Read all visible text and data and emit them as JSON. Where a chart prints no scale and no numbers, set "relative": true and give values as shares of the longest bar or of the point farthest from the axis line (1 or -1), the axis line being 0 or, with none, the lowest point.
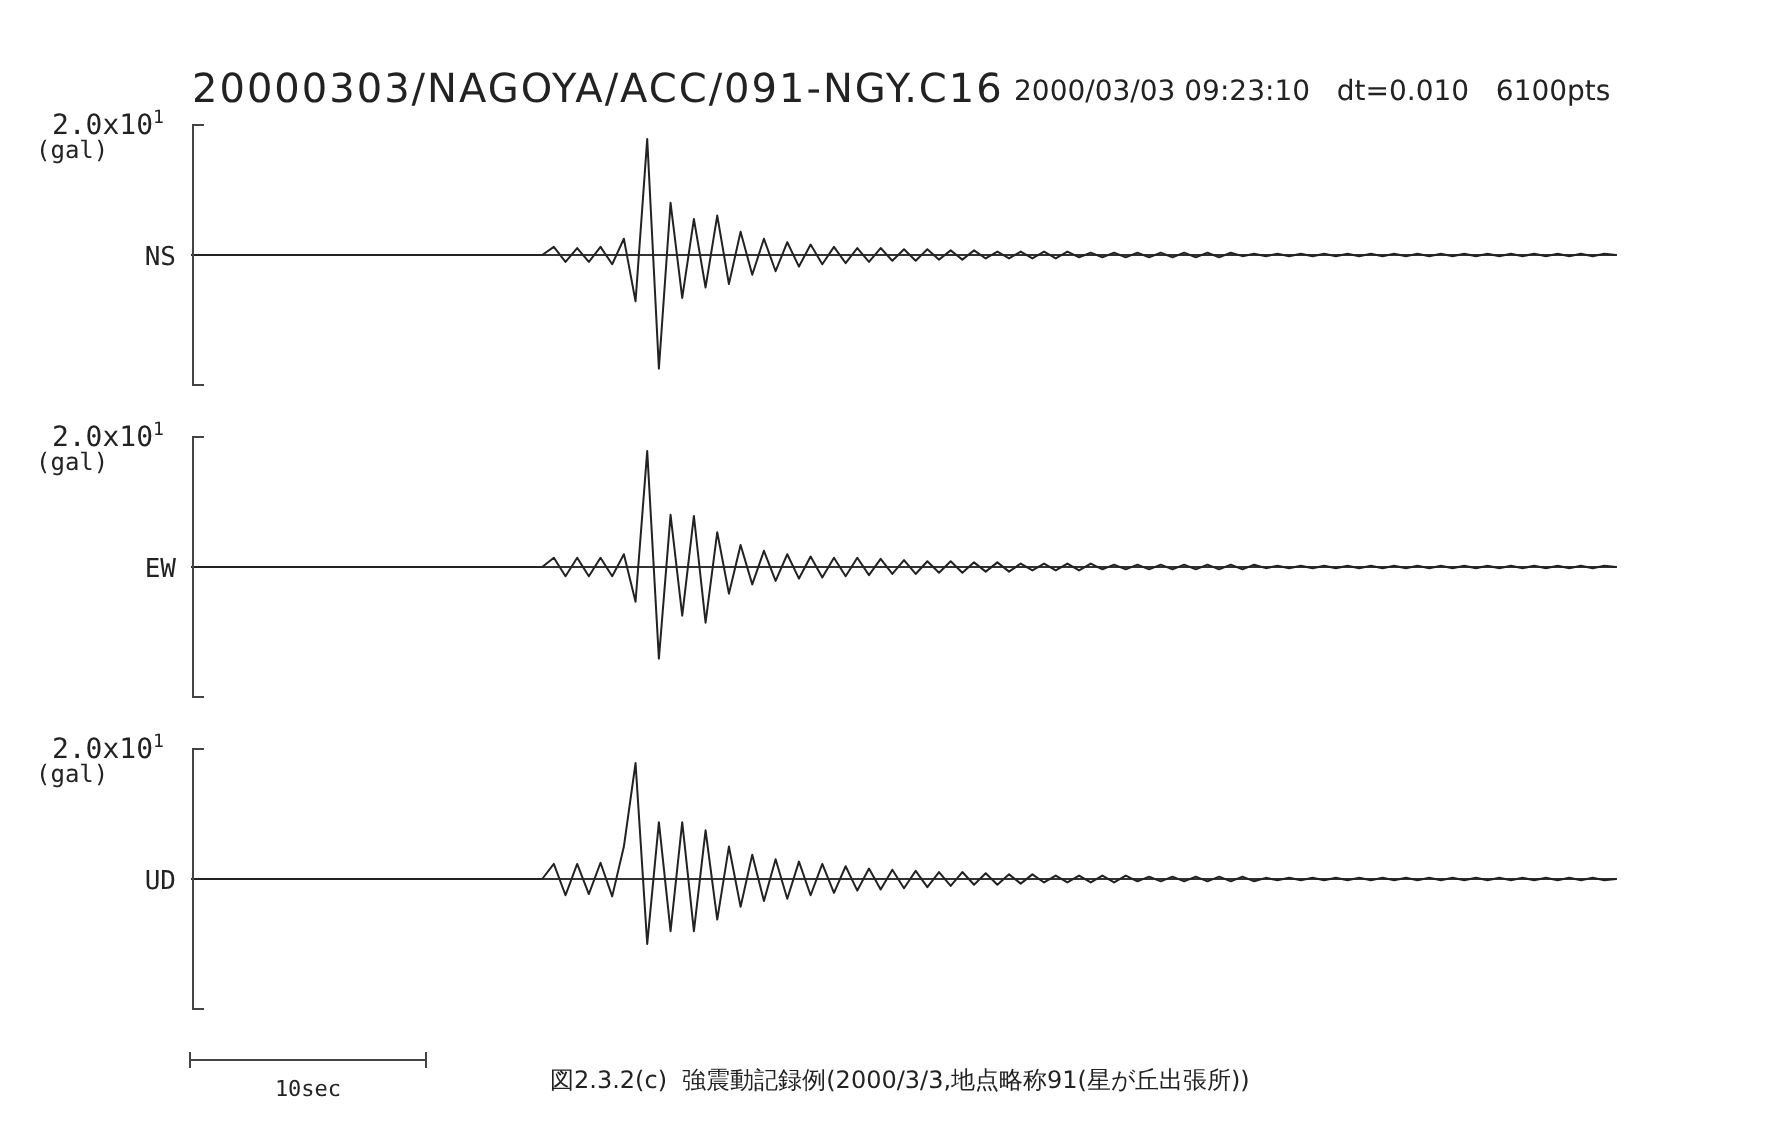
{
  "chart_data": [
    {
      "type": "line",
      "title": "20000303/NAGOYA/ACC/091-NGY.C16",
      "subtitle": "2000/03/03 09:23:10   dt=0.010   6100pts",
      "ylabel": "(gal)",
      "relative": true,
      "annotations": [
        "2.0x10$^{1}$"
      ],
      "categories": [
        null,
        null,
        null,
        null,
        null,
        null,
        null,
        null,
        null,
        null,
        null,
        null,
        null,
        null,
        null,
        null,
        null,
        null,
        null,
        null,
        null,
        null,
        null,
        null,
        null,
        null,
        null,
        null,
        null,
        null,
        null,
        null,
        null,
        null,
        null,
        null,
        null,
        null,
        null,
        null,
        null,
        null,
        null,
        null,
        null,
        null,
        null,
        null,
        null,
        null,
        null,
        null,
        null,
        null,
        null,
        null,
        null,
        null,
        null,
        null,
        null,
        null,
        null,
        null,
        null,
        null,
        null,
        null,
        null,
        null,
        null,
        null,
        null,
        null,
        null,
        null,
        null,
        null,
        null,
        null,
        null,
        null,
        null,
        null,
        null,
        null,
        null,
        null,
        null,
        null,
        null,
        null,
        null,
        null,
        null,
        null,
        null,
        null,
        null,
        null,
        null,
        null,
        null,
        null,
        null,
        null,
        null,
        null,
        null,
        null,
        null,
        null,
        null,
        null,
        null,
        null,
        null,
        null,
        null,
        null,
        null,
        null,
        null
      ],
      "series": [
        {
          "name": "NS",
          "color": "#222222",
          "values": [
            0,
            0,
            0,
            0,
            0,
            0,
            0,
            0,
            0,
            0,
            0,
            0,
            0,
            0,
            0,
            0,
            0,
            0,
            0,
            0,
            0,
            0,
            0,
            0,
            0,
            0,
            0,
            0,
            0,
            0,
            0,
            0.07,
            -0.06,
            0.06,
            -0.06,
            0.07,
            -0.08,
            0.14,
            -0.4,
            1,
            -0.98,
            0.45,
            -0.37,
            0.31,
            -0.28,
            0.34,
            -0.25,
            0.2,
            -0.17,
            0.14,
            -0.14,
            0.11,
            -0.1,
            0.09,
            -0.08,
            0.07,
            -0.07,
            0.06,
            -0.06,
            0.06,
            -0.05,
            0.05,
            -0.05,
            0.05,
            -0.04,
            0.04,
            -0.04,
            0.04,
            -0.03,
            0.03,
            -0.03,
            0.03,
            -0.03,
            0.03,
            -0.03,
            0.03,
            -0.02,
            0.02,
            -0.02,
            0.02,
            -0.02,
            0.02,
            -0.02,
            0.02,
            -0.02,
            0.02,
            -0.02,
            0.02,
            -0.02,
            0.02,
            -0.01,
            0.01,
            -0.01,
            0.01,
            -0.01,
            0.01,
            -0.01,
            0.01,
            -0.01,
            0.01,
            -0.01,
            0.01,
            -0.01,
            0.01,
            -0.01,
            0.01,
            -0.01,
            0.01,
            -0.01,
            0.01,
            -0.01,
            0.01,
            -0.01,
            0.01,
            -0.01,
            0.01,
            -0.01,
            0.01,
            -0.01,
            0.01,
            -0.01,
            0.01,
            0
          ]
        }
      ]
    },
    {
      "type": "line",
      "ylabel": "(gal)",
      "relative": true,
      "annotations": [
        "2.0x10$^{1}$"
      ],
      "categories": [
        null,
        null,
        null,
        null,
        null,
        null,
        null,
        null,
        null,
        null,
        null,
        null,
        null,
        null,
        null,
        null,
        null,
        null,
        null,
        null,
        null,
        null,
        null,
        null,
        null,
        null,
        null,
        null,
        null,
        null,
        null,
        null,
        null,
        null,
        null,
        null,
        null,
        null,
        null,
        null,
        null,
        null,
        null,
        null,
        null,
        null,
        null,
        null,
        null,
        null,
        null,
        null,
        null,
        null,
        null,
        null,
        null,
        null,
        null,
        null,
        null,
        null,
        null,
        null,
        null,
        null,
        null,
        null,
        null,
        null,
        null,
        null,
        null,
        null,
        null,
        null,
        null,
        null,
        null,
        null,
        null,
        null,
        null,
        null,
        null,
        null,
        null,
        null,
        null,
        null,
        null,
        null,
        null,
        null,
        null,
        null,
        null,
        null,
        null,
        null,
        null,
        null,
        null,
        null,
        null,
        null,
        null,
        null,
        null,
        null,
        null,
        null,
        null,
        null,
        null,
        null,
        null,
        null,
        null,
        null,
        null,
        null,
        null
      ],
      "series": [
        {
          "name": "EW",
          "color": "#222222",
          "values": [
            0,
            0,
            0,
            0,
            0,
            0,
            0,
            0,
            0,
            0,
            0,
            0,
            0,
            0,
            0,
            0,
            0,
            0,
            0,
            0,
            0,
            0,
            0,
            0,
            0,
            0,
            0,
            0,
            0,
            0,
            0,
            0.08,
            -0.08,
            0.08,
            -0.08,
            0.08,
            -0.08,
            0.11,
            -0.3,
            1,
            -0.79,
            0.45,
            -0.42,
            0.44,
            -0.48,
            0.3,
            -0.23,
            0.19,
            -0.15,
            0.14,
            -0.12,
            0.11,
            -0.1,
            0.09,
            -0.09,
            0.08,
            -0.08,
            0.08,
            -0.07,
            0.07,
            -0.06,
            0.06,
            -0.06,
            0.05,
            -0.05,
            0.05,
            -0.05,
            0.04,
            -0.04,
            0.04,
            -0.04,
            0.03,
            -0.03,
            0.03,
            -0.03,
            0.03,
            -0.03,
            0.03,
            -0.02,
            0.02,
            -0.02,
            0.02,
            -0.02,
            0.02,
            -0.02,
            0.02,
            -0.02,
            0.02,
            -0.02,
            0.02,
            -0.02,
            0.02,
            -0.01,
            0.01,
            -0.01,
            0.01,
            -0.01,
            0.01,
            -0.01,
            0.01,
            -0.01,
            0.01,
            -0.01,
            0.01,
            -0.01,
            0.01,
            -0.01,
            0.01,
            -0.01,
            0.01,
            -0.01,
            0.01,
            -0.01,
            0.01,
            -0.01,
            0.01,
            -0.01,
            0.01,
            -0.01,
            0.01,
            -0.01,
            0.01,
            0
          ]
        }
      ]
    },
    {
      "type": "line",
      "ylabel": "(gal)",
      "relative": true,
      "annotations": [
        "2.0x10$^{1}$",
        "10sec",
        "図2.3.2(c)  強震動記録例(2000/3/3,地点略称91(星が丘出張所))"
      ],
      "categories": [
        null,
        null,
        null,
        null,
        null,
        null,
        null,
        null,
        null,
        null,
        null,
        null,
        null,
        null,
        null,
        null,
        null,
        null,
        null,
        null,
        null,
        null,
        null,
        null,
        null,
        null,
        null,
        null,
        null,
        null,
        null,
        null,
        null,
        null,
        null,
        null,
        null,
        null,
        null,
        null,
        null,
        null,
        null,
        null,
        null,
        null,
        null,
        null,
        null,
        null,
        null,
        null,
        null,
        null,
        null,
        null,
        null,
        null,
        null,
        null,
        null,
        null,
        null,
        null,
        null,
        null,
        null,
        null,
        null,
        null,
        null,
        null,
        null,
        null,
        null,
        null,
        null,
        null,
        null,
        null,
        null,
        null,
        null,
        null,
        null,
        null,
        null,
        null,
        null,
        null,
        null,
        null,
        null,
        null,
        null,
        null,
        null,
        null,
        null,
        null,
        null,
        null,
        null,
        null,
        null,
        null,
        null,
        null,
        null,
        null,
        null,
        null,
        null,
        null,
        null,
        null,
        null,
        null,
        null,
        null,
        null,
        null,
        null
      ],
      "series": [
        {
          "name": "UD",
          "color": "#222222",
          "values": [
            0,
            0,
            0,
            0,
            0,
            0,
            0,
            0,
            0,
            0,
            0,
            0,
            0,
            0,
            0,
            0,
            0,
            0,
            0,
            0,
            0,
            0,
            0,
            0,
            0,
            0,
            0,
            0,
            0,
            0,
            0,
            0.13,
            -0.14,
            0.13,
            -0.13,
            0.14,
            -0.15,
            0.28,
            1,
            -0.56,
            0.49,
            -0.45,
            0.49,
            -0.45,
            0.42,
            -0.35,
            0.28,
            -0.24,
            0.21,
            -0.19,
            0.17,
            -0.17,
            0.15,
            -0.14,
            0.13,
            -0.12,
            0.11,
            -0.1,
            0.09,
            -0.09,
            0.08,
            -0.08,
            0.07,
            -0.07,
            0.06,
            -0.06,
            0.06,
            -0.05,
            0.05,
            -0.05,
            0.04,
            -0.04,
            0.04,
            -0.03,
            0.03,
            -0.03,
            0.03,
            -0.03,
            0.03,
            -0.03,
            0.03,
            -0.02,
            0.02,
            -0.02,
            0.02,
            -0.02,
            0.02,
            -0.02,
            0.02,
            -0.02,
            0.02,
            -0.02,
            0.01,
            -0.01,
            0.01,
            -0.01,
            0.01,
            -0.01,
            0.01,
            -0.01,
            0.01,
            -0.01,
            0.01,
            -0.01,
            0.01,
            -0.01,
            0.01,
            -0.01,
            0.01,
            -0.01,
            0.01,
            -0.01,
            0.01,
            -0.01,
            0.01,
            -0.01,
            0.01,
            -0.01,
            0.01,
            -0.01,
            0.01,
            -0.01,
            0
          ]
        }
      ]
    }
  ]
}
